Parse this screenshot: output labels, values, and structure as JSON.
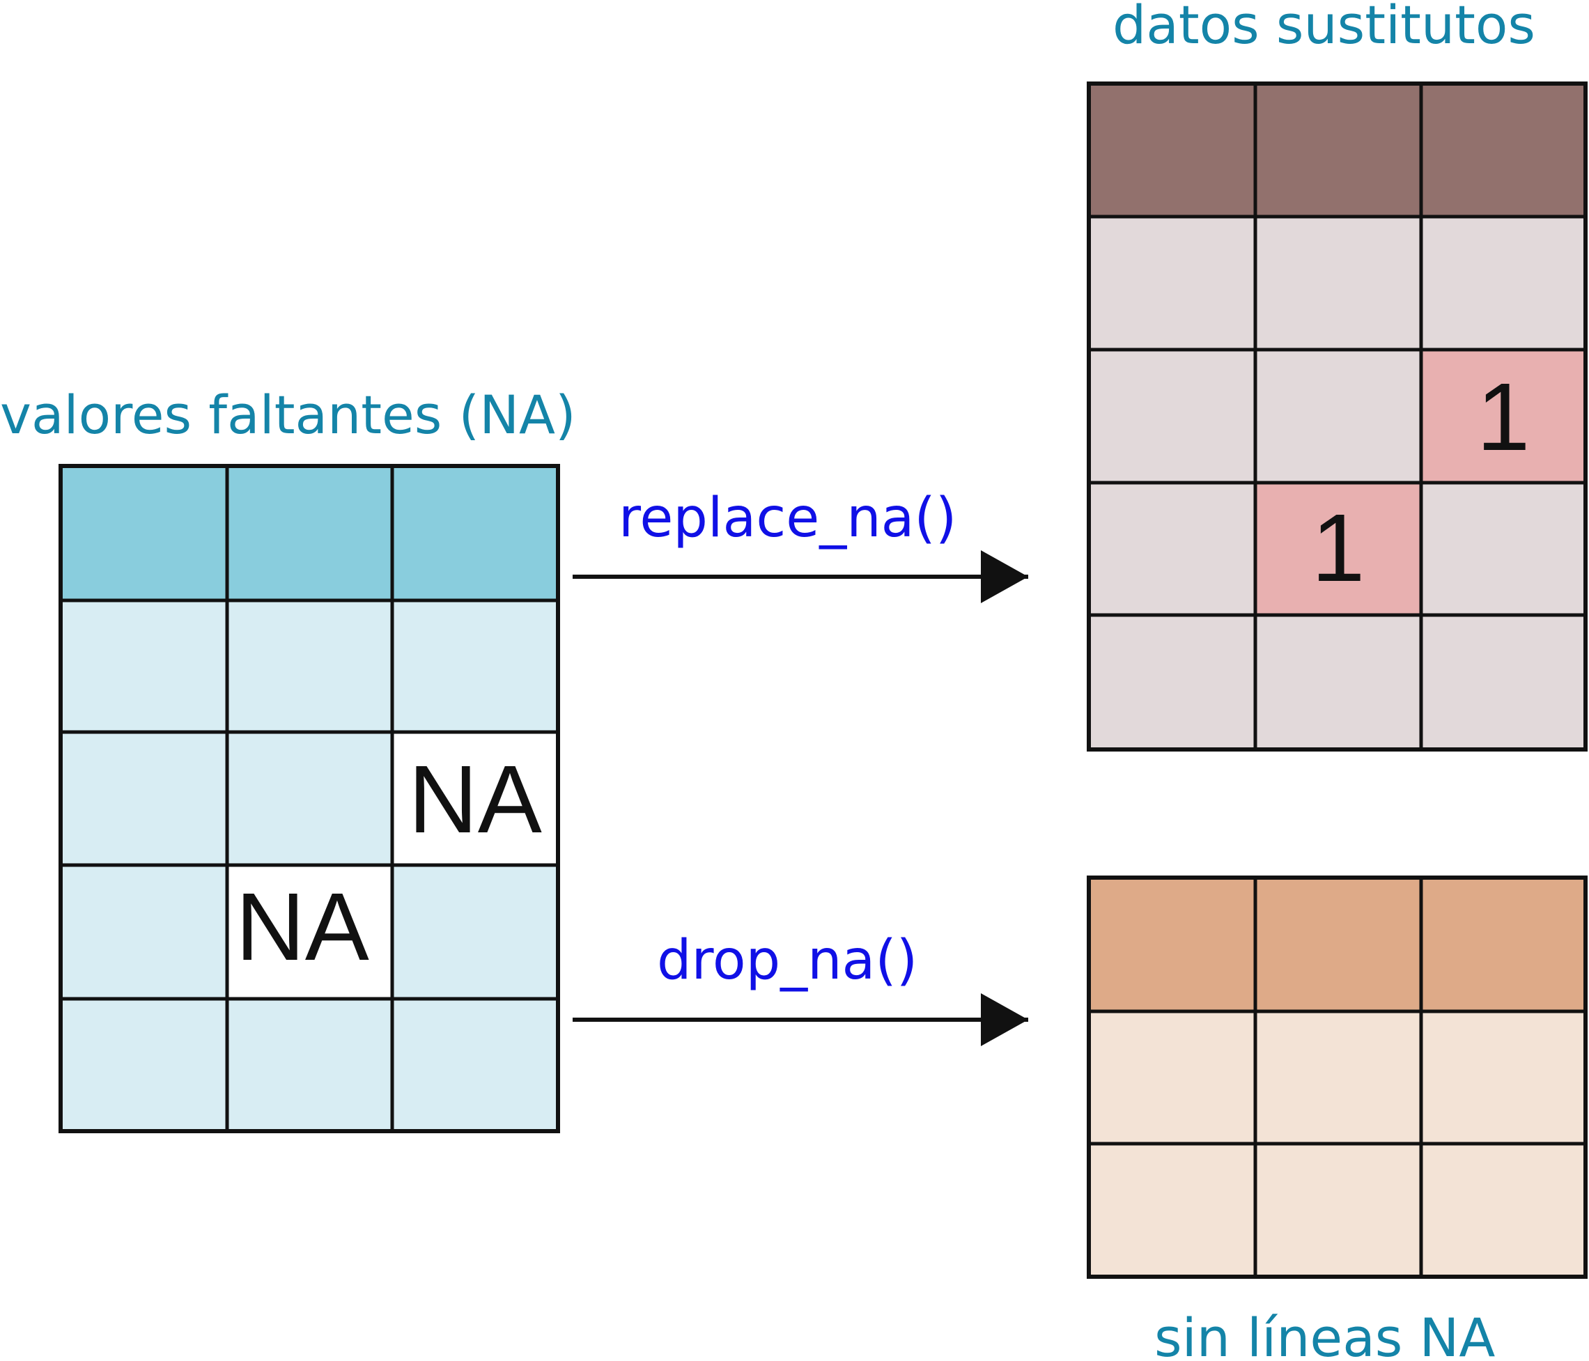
{
  "colors": {
    "title": "#1484a8",
    "function": "#1010e6",
    "line": "#111111",
    "source_header": "#89cddd",
    "source_body": "#d8edf3",
    "na_cell": "#ffffff",
    "replaced_header": "#92716d",
    "replaced_body": "#e2d9da",
    "replaced_cell": "#e8b0b0",
    "dropped_header": "#deaa88",
    "dropped_body": "#f3e3d6"
  },
  "source_table": {
    "title": "valores faltantes (NA)",
    "na_label": "NA"
  },
  "replace_arrow": {
    "label": "replace_na()"
  },
  "drop_arrow": {
    "label": "drop_na()"
  },
  "replaced_table": {
    "title": "datos sustitutos",
    "fill_value": "1"
  },
  "dropped_table": {
    "title": "sin líneas NA"
  }
}
